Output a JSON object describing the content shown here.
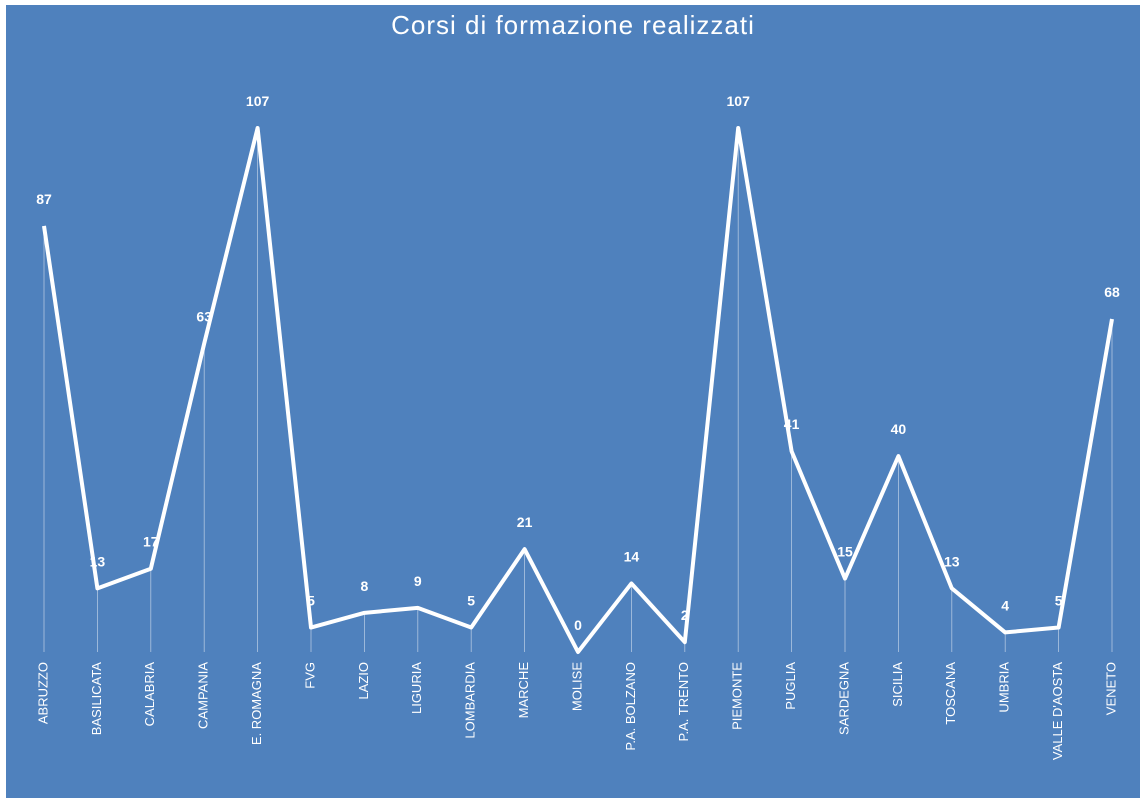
{
  "chart_data": {
    "type": "line",
    "title": "Corsi di formazione realizzati",
    "categories": [
      "ABRUZZO",
      "BASILICATA",
      "CALABRIA",
      "CAMPANIA",
      "E. ROMAGNA",
      "FVG",
      "LAZIO",
      "LIGURIA",
      "LOMBARDIA",
      "MARCHE",
      "MOLISE",
      "P.A. BOLZANO",
      "P.A. TRENTO",
      "PIEMONTE",
      "PUGLIA",
      "SARDEGNA",
      "SICILIA",
      "TOSCANA",
      "UMBRIA",
      "VALLE D'AOSTA",
      "VENETO"
    ],
    "values": [
      87,
      13,
      17,
      63,
      107,
      5,
      8,
      9,
      5,
      21,
      0,
      14,
      2,
      107,
      41,
      15,
      40,
      13,
      4,
      5,
      68
    ],
    "color": "#ffffff"
  }
}
